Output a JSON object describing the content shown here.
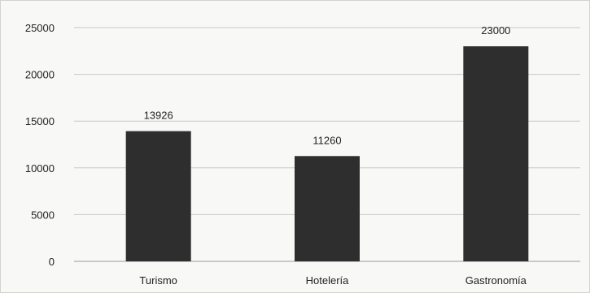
{
  "chart_data": {
    "type": "bar",
    "title": "",
    "xlabel": "",
    "ylabel": "",
    "categories": [
      "Turismo",
      "Hotelería",
      "Gastronomía"
    ],
    "values": [
      13926,
      11260,
      23000
    ],
    "data_labels": [
      "13926",
      "11260",
      "23000"
    ],
    "ylim": [
      0,
      25000
    ],
    "yticks": [
      0,
      5000,
      10000,
      15000,
      20000,
      25000
    ],
    "ytick_labels": [
      "0",
      "5000",
      "10000",
      "15000",
      "20000",
      "25000"
    ],
    "grid": true,
    "legend": "none",
    "bar_color": "#2e2e2e"
  }
}
